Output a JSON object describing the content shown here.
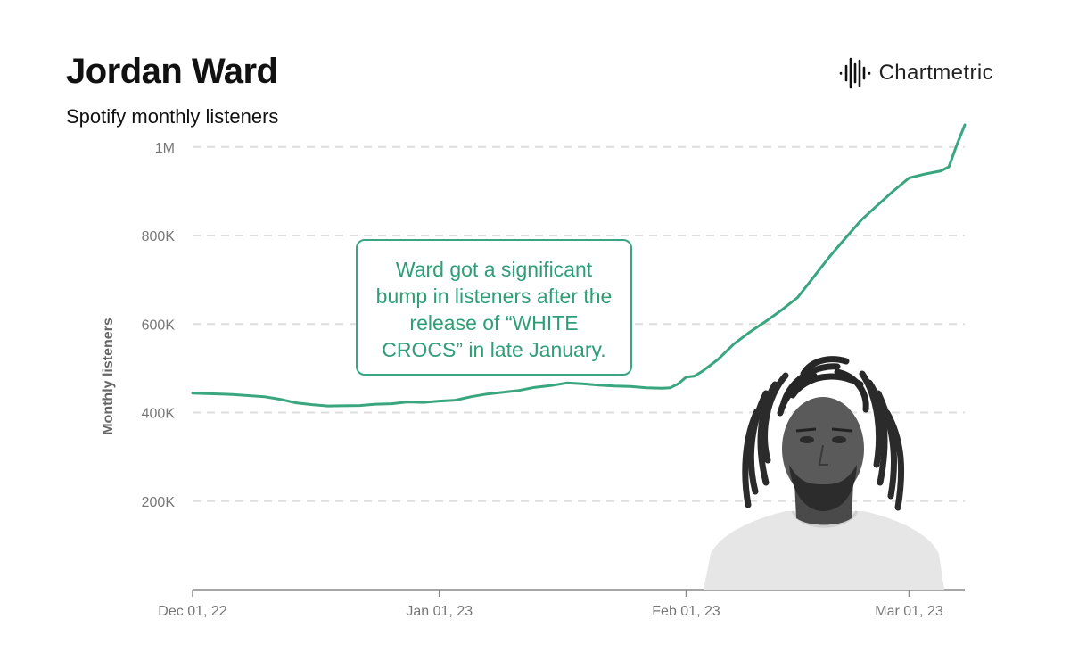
{
  "header": {
    "title": "Jordan Ward",
    "subtitle": "Spotify monthly listeners"
  },
  "brand": {
    "name": "Chartmetric",
    "logo_icon": "chartmetric-waveform-icon"
  },
  "annotation": {
    "text": "Ward got a significant bump in listeners after the release of “WHITE CROCS” in late January."
  },
  "photo": {
    "subject": "artist-portrait",
    "style": "grayscale"
  },
  "colors": {
    "line": "#3aa67f",
    "annotation": "#2f9e77",
    "grid": "#dddddd",
    "axis": "#777777"
  },
  "chart_data": {
    "type": "line",
    "ylabel": "Monthly listeners",
    "xlabel": "",
    "ylim": [
      0,
      1050000
    ],
    "yticks": [
      {
        "value": 200000,
        "label": "200K"
      },
      {
        "value": 400000,
        "label": "400K"
      },
      {
        "value": 600000,
        "label": "600K"
      },
      {
        "value": 800000,
        "label": "800K"
      },
      {
        "value": 1000000,
        "label": "1M"
      }
    ],
    "xticks": [
      {
        "day": 0,
        "label": "Dec 01, 22"
      },
      {
        "day": 31,
        "label": "Jan 01, 23"
      },
      {
        "day": 62,
        "label": "Feb 01, 23"
      },
      {
        "day": 90,
        "label": "Mar 01, 23"
      }
    ],
    "xlim_days": [
      0,
      97
    ],
    "grid": "horizontal dashed",
    "series": [
      {
        "points": [
          [
            0,
            444000
          ],
          [
            5,
            441000
          ],
          [
            9,
            436000
          ],
          [
            11,
            430000
          ],
          [
            13,
            422000
          ],
          [
            15,
            418000
          ],
          [
            17,
            415000
          ],
          [
            15,
            418000
          ],
          [
            17,
            415000
          ],
          [
            21,
            416000
          ],
          [
            23,
            419000
          ],
          [
            25,
            420000
          ],
          [
            27,
            424000
          ],
          [
            29,
            423000
          ],
          [
            31,
            426000
          ],
          [
            33,
            428000
          ],
          [
            35,
            436000
          ],
          [
            37,
            442000
          ],
          [
            39,
            446000
          ],
          [
            41,
            450000
          ],
          [
            43,
            457000
          ],
          [
            45,
            461000
          ],
          [
            47,
            467000
          ],
          [
            49,
            465000
          ],
          [
            51,
            462000
          ],
          [
            53,
            460000
          ],
          [
            55,
            459000
          ],
          [
            57,
            456000
          ],
          [
            59,
            455000
          ],
          [
            60,
            456000
          ],
          [
            61,
            465000
          ],
          [
            62,
            480000
          ],
          [
            63,
            482000
          ],
          [
            64,
            493000
          ],
          [
            66,
            520000
          ],
          [
            68,
            555000
          ],
          [
            70,
            582000
          ],
          [
            72,
            606000
          ],
          [
            74,
            632000
          ],
          [
            76,
            660000
          ],
          [
            78,
            706000
          ],
          [
            80,
            752000
          ],
          [
            82,
            794000
          ],
          [
            84,
            835000
          ],
          [
            86,
            868000
          ],
          [
            88,
            900000
          ],
          [
            90,
            930000
          ],
          [
            92,
            939000
          ],
          [
            94,
            946000
          ],
          [
            95,
            955000
          ],
          [
            96,
            1005000
          ],
          [
            97,
            1050000
          ]
        ]
      }
    ]
  }
}
